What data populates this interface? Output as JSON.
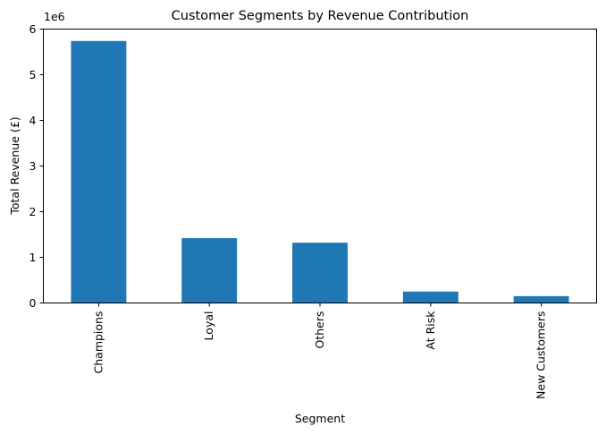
{
  "chart_data": {
    "type": "bar",
    "title": "Customer Segments by Revenue Contribution",
    "xlabel": "Segment",
    "ylabel": "Total Revenue (£)",
    "y_offset_label": "1e6",
    "categories": [
      "Champions",
      "Loyal",
      "Others",
      "At Risk",
      "New Customers"
    ],
    "values": [
      5740000,
      1420000,
      1320000,
      250000,
      150000
    ],
    "ylim": [
      0,
      6000000
    ],
    "yticks": [
      0,
      1,
      2,
      3,
      4,
      5,
      6
    ],
    "ytick_multiplier": 1000000,
    "bar_color": "#1f77b4",
    "grid": false,
    "legend": "none"
  }
}
